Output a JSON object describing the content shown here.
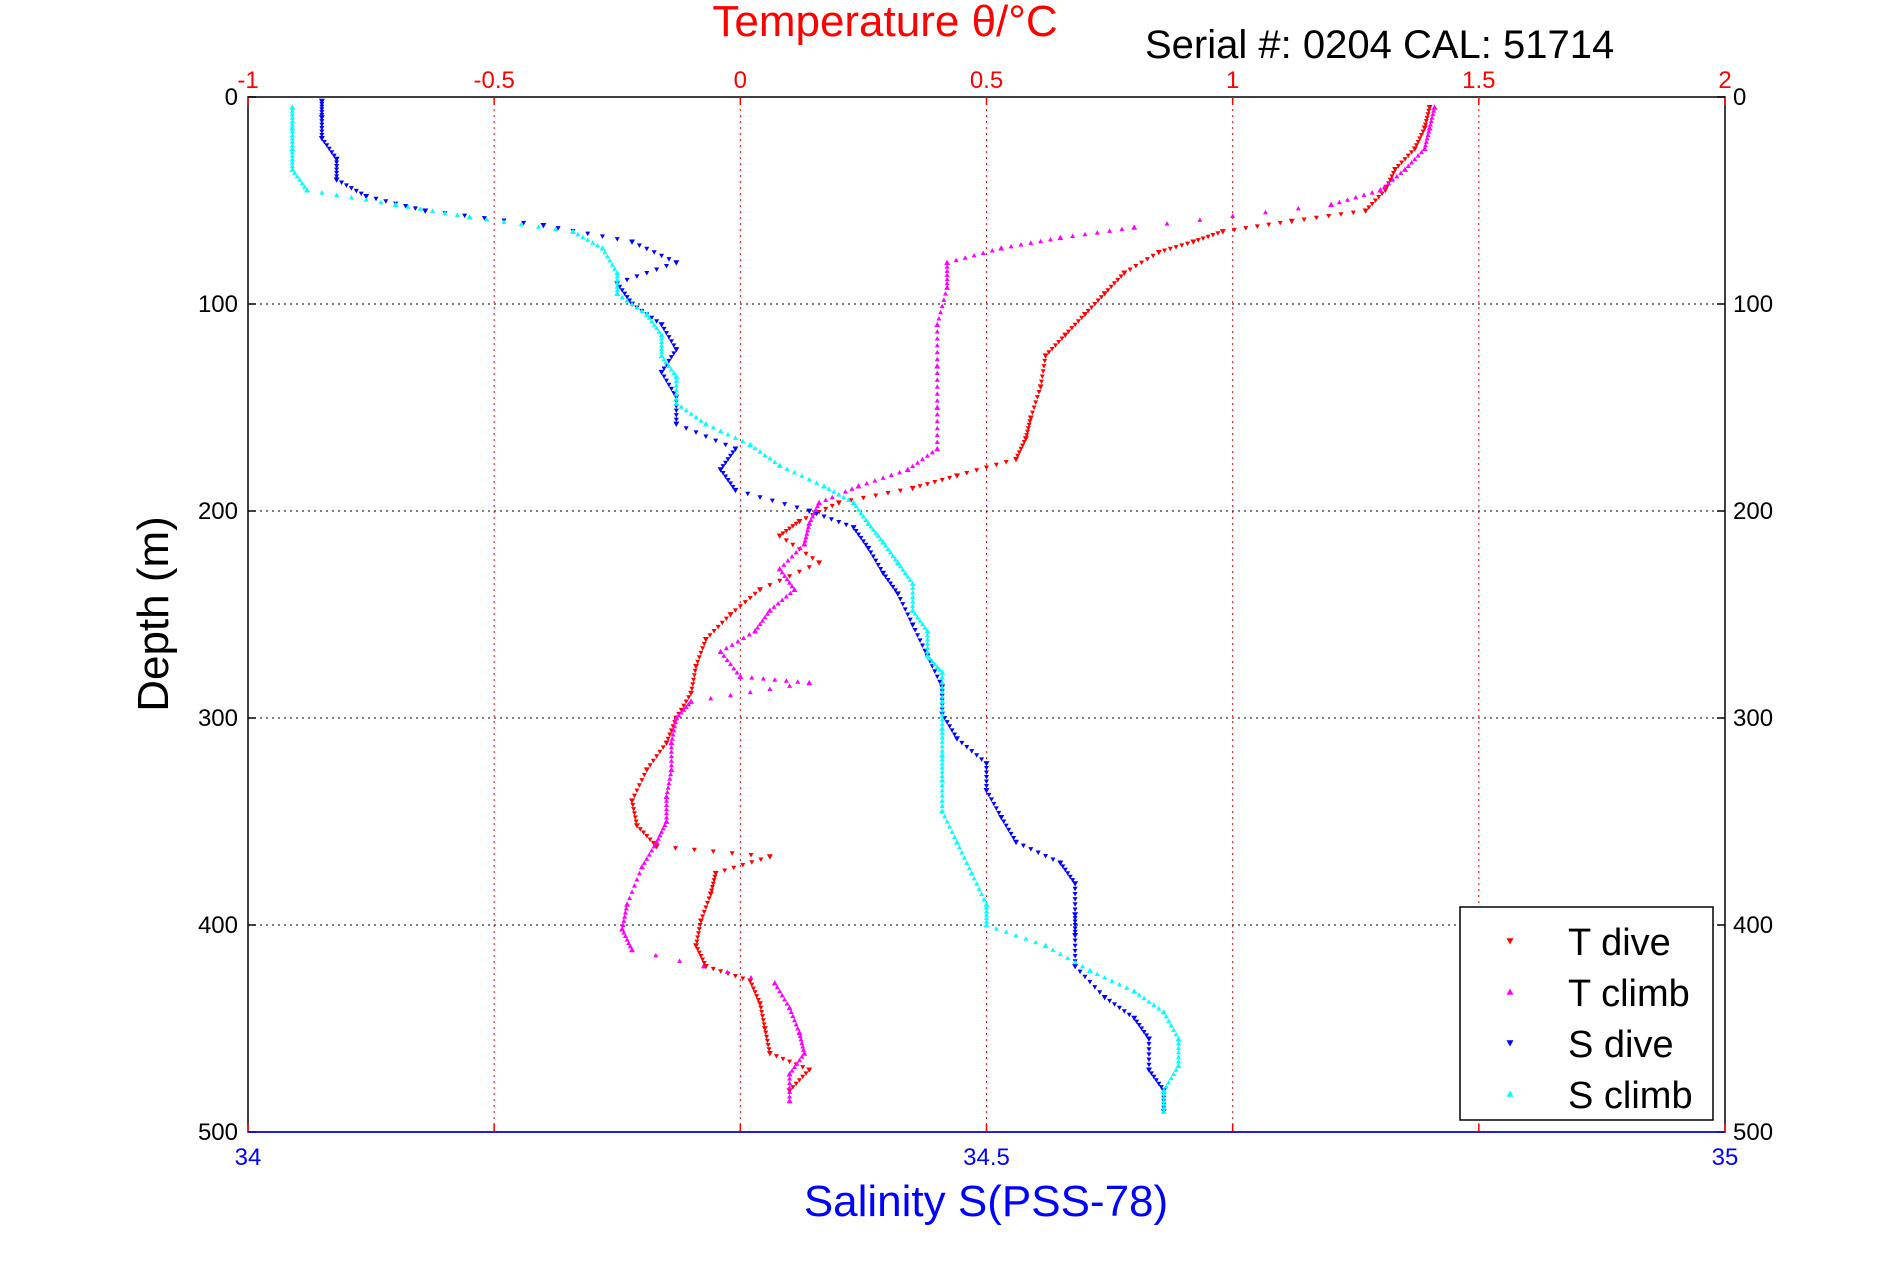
{
  "chart_data": {
    "type": "scatter",
    "title": "Serial #: 0204  CAL: 51714",
    "top_axis": {
      "label": "Temperature θ/°C",
      "range": [
        -1,
        2
      ],
      "ticks": [
        "-1",
        "-0.5",
        "0",
        "0.5",
        "1",
        "1.5",
        "2"
      ],
      "tick_values": [
        -1,
        -0.5,
        0,
        0.5,
        1,
        1.5,
        2
      ],
      "color": "#ff0000"
    },
    "bottom_axis": {
      "label": "Salinity S(PSS-78)",
      "range": [
        34,
        35
      ],
      "ticks": [
        "34",
        "34.5",
        "35"
      ],
      "tick_values": [
        34,
        34.5,
        35
      ],
      "color": "#0000ff"
    },
    "y_axis": {
      "label": "Depth (m)",
      "range": [
        0,
        500
      ],
      "reversed": true,
      "ticks": [
        "0",
        "100",
        "200",
        "300",
        "400",
        "500"
      ],
      "tick_values": [
        0,
        100,
        200,
        300,
        400,
        500
      ]
    },
    "grid": true,
    "legend_position": "bottom-right",
    "series": [
      {
        "name": "T dive",
        "axis": "temperature",
        "color": "#ff0000",
        "marker": "triangle-down",
        "points": [
          [
            1.4,
            5
          ],
          [
            1.39,
            15
          ],
          [
            1.37,
            25
          ],
          [
            1.33,
            35
          ],
          [
            1.31,
            45
          ],
          [
            1.27,
            55
          ],
          [
            1.12,
            60
          ],
          [
            0.98,
            65
          ],
          [
            0.92,
            70
          ],
          [
            0.85,
            75
          ],
          [
            0.78,
            85
          ],
          [
            0.74,
            95
          ],
          [
            0.7,
            105
          ],
          [
            0.66,
            115
          ],
          [
            0.62,
            125
          ],
          [
            0.61,
            140
          ],
          [
            0.59,
            155
          ],
          [
            0.58,
            165
          ],
          [
            0.56,
            175
          ],
          [
            0.44,
            183
          ],
          [
            0.35,
            189
          ],
          [
            0.2,
            196
          ],
          [
            0.12,
            205
          ],
          [
            0.08,
            212
          ],
          [
            0.16,
            225
          ],
          [
            0.04,
            238
          ],
          [
            -0.02,
            250
          ],
          [
            -0.07,
            262
          ],
          [
            -0.09,
            275
          ],
          [
            -0.1,
            288
          ],
          [
            -0.13,
            300
          ],
          [
            -0.15,
            312
          ],
          [
            -0.19,
            325
          ],
          [
            -0.22,
            340
          ],
          [
            -0.21,
            352
          ],
          [
            -0.17,
            362
          ],
          [
            0.06,
            367
          ],
          [
            -0.05,
            375
          ],
          [
            -0.06,
            385
          ],
          [
            -0.08,
            398
          ],
          [
            -0.09,
            410
          ],
          [
            -0.07,
            420
          ],
          [
            0.02,
            427
          ],
          [
            0.04,
            438
          ],
          [
            0.05,
            450
          ],
          [
            0.06,
            462
          ],
          [
            0.14,
            470
          ],
          [
            0.1,
            480
          ]
        ]
      },
      {
        "name": "T climb",
        "axis": "temperature",
        "color": "#ff00ff",
        "marker": "triangle-up",
        "points": [
          [
            1.41,
            5
          ],
          [
            1.4,
            15
          ],
          [
            1.39,
            25
          ],
          [
            1.35,
            35
          ],
          [
            1.3,
            45
          ],
          [
            1.2,
            52
          ],
          [
            0.8,
            63
          ],
          [
            0.65,
            68
          ],
          [
            0.53,
            73
          ],
          [
            0.42,
            80
          ],
          [
            0.42,
            92
          ],
          [
            0.4,
            110
          ],
          [
            0.4,
            130
          ],
          [
            0.4,
            150
          ],
          [
            0.4,
            170
          ],
          [
            0.34,
            180
          ],
          [
            0.24,
            188
          ],
          [
            0.16,
            196
          ],
          [
            0.14,
            206
          ],
          [
            0.13,
            216
          ],
          [
            0.08,
            228
          ],
          [
            0.11,
            238
          ],
          [
            0.06,
            248
          ],
          [
            0.03,
            258
          ],
          [
            -0.04,
            268
          ],
          [
            0.0,
            280
          ],
          [
            0.14,
            283
          ],
          [
            -0.1,
            292
          ],
          [
            -0.13,
            300
          ],
          [
            -0.14,
            312
          ],
          [
            -0.14,
            325
          ],
          [
            -0.15,
            338
          ],
          [
            -0.15,
            350
          ],
          [
            -0.17,
            360
          ],
          [
            -0.2,
            372
          ],
          [
            -0.23,
            390
          ],
          [
            -0.24,
            402
          ],
          [
            -0.22,
            412
          ],
          [
            0.07,
            428
          ],
          [
            0.1,
            440
          ],
          [
            0.12,
            452
          ],
          [
            0.13,
            462
          ],
          [
            0.1,
            472
          ],
          [
            0.1,
            485
          ]
        ]
      },
      {
        "name": "S dive",
        "color": "#0000ff",
        "axis": "salinity",
        "marker": "triangle-down",
        "points": [
          [
            34.05,
            2
          ],
          [
            34.05,
            10
          ],
          [
            34.05,
            20
          ],
          [
            34.06,
            30
          ],
          [
            34.06,
            40
          ],
          [
            34.08,
            48
          ],
          [
            34.12,
            55
          ],
          [
            34.2,
            62
          ],
          [
            34.26,
            70
          ],
          [
            34.29,
            80
          ],
          [
            34.25,
            90
          ],
          [
            34.26,
            100
          ],
          [
            34.28,
            110
          ],
          [
            34.29,
            122
          ],
          [
            34.28,
            133
          ],
          [
            34.29,
            145
          ],
          [
            34.29,
            158
          ],
          [
            34.33,
            170
          ],
          [
            34.32,
            180
          ],
          [
            34.33,
            190
          ],
          [
            34.38,
            200
          ],
          [
            34.41,
            208
          ],
          [
            34.42,
            218
          ],
          [
            34.43,
            230
          ],
          [
            34.44,
            240
          ],
          [
            34.45,
            255
          ],
          [
            34.46,
            270
          ],
          [
            34.47,
            285
          ],
          [
            34.47,
            298
          ],
          [
            34.48,
            310
          ],
          [
            34.5,
            322
          ],
          [
            34.5,
            335
          ],
          [
            34.51,
            348
          ],
          [
            34.52,
            360
          ],
          [
            34.55,
            370
          ],
          [
            34.56,
            380
          ],
          [
            34.56,
            395
          ],
          [
            34.56,
            405
          ],
          [
            34.56,
            420
          ],
          [
            34.58,
            435
          ],
          [
            34.6,
            445
          ],
          [
            34.61,
            455
          ],
          [
            34.61,
            470
          ],
          [
            34.62,
            480
          ],
          [
            34.62,
            490
          ]
        ]
      },
      {
        "name": "S climb",
        "color": "#00ffff",
        "axis": "salinity",
        "marker": "triangle-up",
        "points": [
          [
            34.03,
            5
          ],
          [
            34.03,
            15
          ],
          [
            34.03,
            25
          ],
          [
            34.03,
            35
          ],
          [
            34.04,
            45
          ],
          [
            34.1,
            52
          ],
          [
            34.15,
            58
          ],
          [
            34.22,
            65
          ],
          [
            34.24,
            73
          ],
          [
            34.25,
            85
          ],
          [
            34.25,
            95
          ],
          [
            34.27,
            105
          ],
          [
            34.28,
            115
          ],
          [
            34.28,
            125
          ],
          [
            34.29,
            135
          ],
          [
            34.29,
            148
          ],
          [
            34.31,
            158
          ],
          [
            34.34,
            168
          ],
          [
            34.36,
            178
          ],
          [
            34.39,
            188
          ],
          [
            34.41,
            196
          ],
          [
            34.42,
            206
          ],
          [
            34.43,
            215
          ],
          [
            34.44,
            225
          ],
          [
            34.45,
            235
          ],
          [
            34.45,
            248
          ],
          [
            34.46,
            258
          ],
          [
            34.46,
            270
          ],
          [
            34.47,
            278
          ],
          [
            34.47,
            292
          ],
          [
            34.47,
            305
          ],
          [
            34.47,
            318
          ],
          [
            34.47,
            330
          ],
          [
            34.47,
            345
          ],
          [
            34.48,
            360
          ],
          [
            34.49,
            375
          ],
          [
            34.5,
            390
          ],
          [
            34.5,
            400
          ],
          [
            34.54,
            410
          ],
          [
            34.57,
            422
          ],
          [
            34.6,
            432
          ],
          [
            34.62,
            442
          ],
          [
            34.63,
            455
          ],
          [
            34.63,
            468
          ],
          [
            34.62,
            480
          ],
          [
            34.62,
            490
          ]
        ]
      }
    ]
  }
}
